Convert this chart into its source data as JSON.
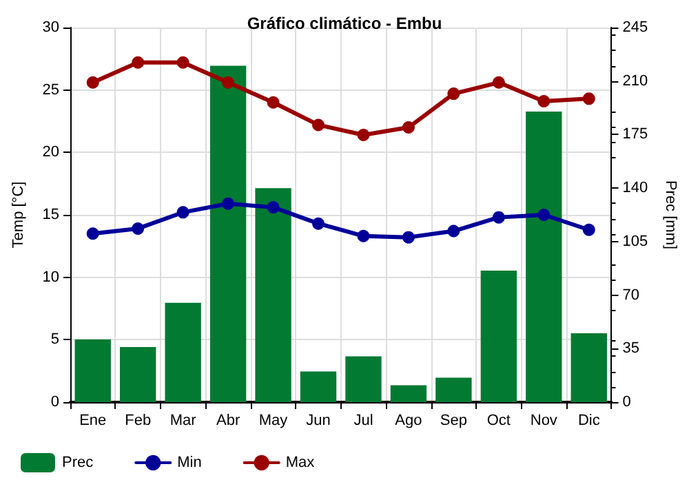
{
  "chart_data": {
    "type": "line",
    "title": "Gráfico climático - Embu",
    "ylabel": "Temp [°C]",
    "y2label": "Prec [mm]",
    "categories": [
      "Ene",
      "Feb",
      "Mar",
      "Abr",
      "May",
      "Jun",
      "Jul",
      "Ago",
      "Sep",
      "Oct",
      "Nov",
      "Dic"
    ],
    "series": [
      {
        "name": "Prec",
        "type": "bar",
        "axis": "y2",
        "color": "#037a32",
        "values": [
          41,
          36,
          65,
          220,
          140,
          20,
          30,
          11,
          16,
          86,
          190,
          45
        ]
      },
      {
        "name": "Min",
        "color": "#000099",
        "values": [
          13.5,
          13.9,
          15.2,
          15.9,
          15.6,
          14.3,
          13.3,
          13.2,
          13.7,
          14.8,
          15.0,
          13.8
        ]
      },
      {
        "name": "Max",
        "color": "#990000",
        "values": [
          25.6,
          27.2,
          27.2,
          25.6,
          24.0,
          22.2,
          21.4,
          22.0,
          24.7,
          25.6,
          24.1,
          24.3
        ]
      }
    ],
    "ylim": [
      0,
      30
    ],
    "yticks": [
      0,
      5,
      10,
      15,
      20,
      25,
      30
    ],
    "y2lim": [
      0,
      245
    ],
    "y2ticks": [
      0,
      35,
      70,
      105,
      140,
      175,
      210,
      245
    ],
    "grid": true,
    "legend": "bottom left",
    "marker": "circle",
    "line_style": "solid"
  }
}
